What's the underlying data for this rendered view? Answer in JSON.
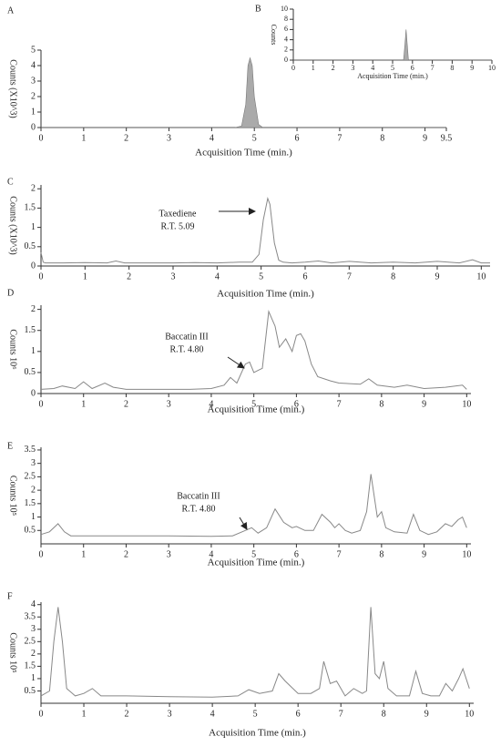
{
  "chart_data": [
    {
      "type": "area",
      "label": "A",
      "ylabel": "Counts (X10^3)",
      "xlabel": "Acquisition Time (min.)",
      "color": "#aaaaaa",
      "xlim": [
        0,
        9.5
      ],
      "ylim": [
        0,
        5
      ],
      "xticks": [
        0,
        1,
        2,
        3,
        4,
        5,
        6,
        7,
        8,
        9,
        9.5
      ],
      "yticks": [
        0,
        1,
        2,
        3,
        4,
        5
      ],
      "x": [
        0,
        4.55,
        4.7,
        4.8,
        4.85,
        4.9,
        4.95,
        5.0,
        5.1,
        5.2,
        9.5
      ],
      "values": [
        0,
        0,
        0.1,
        1.5,
        4.0,
        4.5,
        4.0,
        2.0,
        0.2,
        0,
        0
      ]
    },
    {
      "type": "area",
      "label": "B",
      "ylabel": "Counts",
      "xlabel": "Acquisition Time (min.)",
      "color": "#aaaaaa",
      "xlim": [
        0,
        10
      ],
      "ylim": [
        0,
        10
      ],
      "xticks": [
        0,
        1,
        2,
        3,
        4,
        5,
        6,
        7,
        8,
        9,
        10
      ],
      "yticks": [
        0,
        2,
        4,
        6,
        8,
        10
      ],
      "x": [
        0,
        5.55,
        5.62,
        5.68,
        5.74,
        5.8,
        10
      ],
      "values": [
        0,
        0,
        3,
        6,
        3,
        0,
        0
      ]
    },
    {
      "type": "line",
      "label": "C",
      "ylabel": "Counts (X10^3)",
      "xlabel": "Acquisition Time (min.)",
      "color": "#888888",
      "annotation": [
        "Taxediene",
        "R.T. 5.09"
      ],
      "xlim": [
        0,
        10.2
      ],
      "ylim": [
        0,
        2.1
      ],
      "xticks": [
        0,
        1,
        2,
        3,
        4,
        5,
        6,
        7,
        8,
        9,
        10
      ],
      "yticks": [
        0,
        0.5,
        1,
        1.5,
        2
      ],
      "x": [
        0,
        0.05,
        0.1,
        0.5,
        1,
        1.5,
        1.7,
        1.9,
        2.5,
        3,
        3.5,
        4,
        4.5,
        4.8,
        4.95,
        5.05,
        5.15,
        5.2,
        5.3,
        5.4,
        5.5,
        5.7,
        6,
        6.3,
        6.6,
        7,
        7.5,
        8,
        8.5,
        9,
        9.5,
        9.8,
        10,
        10.2
      ],
      "values": [
        0.35,
        0.1,
        0.08,
        0.08,
        0.09,
        0.08,
        0.13,
        0.08,
        0.08,
        0.08,
        0.09,
        0.08,
        0.1,
        0.1,
        0.3,
        1.2,
        1.75,
        1.6,
        0.6,
        0.15,
        0.1,
        0.08,
        0.1,
        0.13,
        0.08,
        0.12,
        0.08,
        0.1,
        0.08,
        0.12,
        0.08,
        0.16,
        0.08,
        0.08
      ]
    },
    {
      "type": "line",
      "label": "D",
      "ylabel": "Counts 10⁶",
      "xlabel": "Acquisition Time (min.)",
      "color": "#888888",
      "annotation": [
        "Baccatin III",
        "R.T. 4.80"
      ],
      "xlim": [
        0,
        10.1
      ],
      "ylim": [
        0,
        2.1
      ],
      "xticks": [
        0,
        1,
        2,
        3,
        4,
        5,
        6,
        7,
        8,
        9,
        10
      ],
      "yticks": [
        0,
        0.5,
        1,
        1.5,
        2
      ],
      "x": [
        0,
        0.3,
        0.5,
        0.8,
        1,
        1.2,
        1.5,
        1.7,
        2,
        2.5,
        3,
        3.5,
        4,
        4.3,
        4.45,
        4.6,
        4.8,
        4.9,
        5.0,
        5.1,
        5.2,
        5.35,
        5.5,
        5.6,
        5.75,
        5.9,
        6.0,
        6.1,
        6.2,
        6.35,
        6.5,
        6.8,
        7,
        7.5,
        7.7,
        7.9,
        8.3,
        8.6,
        9,
        9.5,
        9.9,
        10
      ],
      "values": [
        0.1,
        0.12,
        0.18,
        0.12,
        0.28,
        0.12,
        0.25,
        0.15,
        0.1,
        0.1,
        0.1,
        0.1,
        0.12,
        0.2,
        0.38,
        0.25,
        0.7,
        0.75,
        0.5,
        0.55,
        0.6,
        1.95,
        1.6,
        1.1,
        1.3,
        1.0,
        1.38,
        1.42,
        1.25,
        0.7,
        0.4,
        0.3,
        0.25,
        0.22,
        0.35,
        0.2,
        0.15,
        0.2,
        0.12,
        0.15,
        0.2,
        0.1
      ]
    },
    {
      "type": "line",
      "label": "E",
      "ylabel": "Counts 10⁵",
      "xlabel": "Acquisition Time (min.)",
      "color": "#888888",
      "annotation": [
        "Baccatin III",
        "R.T. 4.80"
      ],
      "xlim": [
        0,
        10.1
      ],
      "ylim": [
        0,
        3.6
      ],
      "xticks": [
        0,
        1,
        2,
        3,
        4,
        5,
        6,
        7,
        8,
        9,
        10
      ],
      "yticks": [
        0.5,
        1,
        1.5,
        2,
        2.5,
        3,
        3.5
      ],
      "x": [
        0,
        0.2,
        0.4,
        0.55,
        0.7,
        1,
        2,
        3,
        4,
        4.5,
        4.8,
        4.95,
        5.1,
        5.3,
        5.5,
        5.7,
        5.9,
        6.0,
        6.2,
        6.4,
        6.6,
        6.8,
        6.9,
        7.0,
        7.15,
        7.3,
        7.5,
        7.65,
        7.75,
        7.9,
        8.0,
        8.1,
        8.3,
        8.6,
        8.75,
        8.9,
        9.1,
        9.3,
        9.5,
        9.65,
        9.8,
        9.9,
        10
      ],
      "values": [
        0.35,
        0.45,
        0.75,
        0.45,
        0.3,
        0.3,
        0.3,
        0.3,
        0.28,
        0.3,
        0.5,
        0.6,
        0.4,
        0.6,
        1.3,
        0.8,
        0.6,
        0.65,
        0.5,
        0.5,
        1.1,
        0.8,
        0.6,
        0.75,
        0.5,
        0.4,
        0.5,
        1.2,
        2.6,
        1.0,
        1.2,
        0.6,
        0.45,
        0.4,
        1.1,
        0.5,
        0.35,
        0.45,
        0.75,
        0.65,
        0.9,
        1.0,
        0.6
      ]
    },
    {
      "type": "line",
      "label": "F",
      "ylabel": "Counts 10⁵",
      "xlabel": "Acquisition Time (min.)",
      "color": "#888888",
      "xlim": [
        0,
        10.1
      ],
      "ylim": [
        0,
        4.1
      ],
      "xticks": [
        0,
        1,
        2,
        3,
        4,
        5,
        6,
        7,
        8,
        9,
        10
      ],
      "yticks": [
        0.5,
        1,
        1.5,
        2,
        2.5,
        3,
        3.5,
        4
      ],
      "x": [
        0,
        0.2,
        0.3,
        0.4,
        0.5,
        0.6,
        0.8,
        1.0,
        1.2,
        1.4,
        2,
        3,
        4,
        4.6,
        4.85,
        5.1,
        5.4,
        5.55,
        5.7,
        6.0,
        6.3,
        6.5,
        6.6,
        6.75,
        6.9,
        7.0,
        7.1,
        7.3,
        7.5,
        7.6,
        7.7,
        7.8,
        7.9,
        8.0,
        8.1,
        8.3,
        8.6,
        8.75,
        8.9,
        9.1,
        9.3,
        9.45,
        9.6,
        9.75,
        9.85,
        10
      ],
      "values": [
        0.3,
        0.5,
        2.5,
        3.9,
        2.5,
        0.6,
        0.3,
        0.4,
        0.6,
        0.3,
        0.3,
        0.27,
        0.25,
        0.3,
        0.55,
        0.4,
        0.5,
        1.2,
        0.9,
        0.4,
        0.4,
        0.6,
        1.7,
        0.8,
        0.9,
        0.6,
        0.3,
        0.6,
        0.4,
        0.5,
        3.9,
        1.2,
        1.0,
        1.7,
        0.6,
        0.3,
        0.3,
        1.3,
        0.4,
        0.3,
        0.3,
        0.8,
        0.5,
        1.0,
        1.4,
        0.6
      ]
    }
  ]
}
